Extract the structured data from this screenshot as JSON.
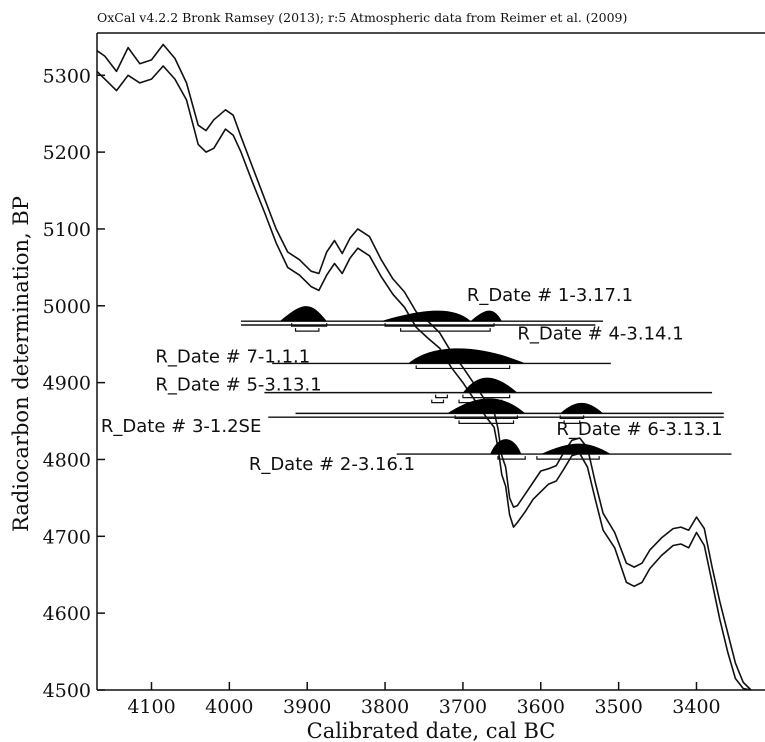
{
  "header": "OxCal v4.2.2 Bronk Ramsey (2013); r:5 Atmospheric data from Reimer et al. (2009)",
  "chart_data": {
    "type": "line",
    "xlabel": "Calibrated date, cal BC",
    "ylabel": "Radiocarbon determination, BP",
    "x_reversed": true,
    "xlim": [
      4170,
      3312
    ],
    "ylim": [
      4500,
      5355
    ],
    "x_ticks": [
      4100,
      4000,
      3900,
      3800,
      3700,
      3600,
      3500,
      3400
    ],
    "y_ticks": [
      4500,
      4600,
      4700,
      4800,
      4900,
      5000,
      5100,
      5200,
      5300
    ],
    "colors": {
      "curve": "#111111",
      "fill": "#000000",
      "axis": "#111111"
    },
    "calibration_curve": {
      "x": [
        4170,
        4160,
        4145,
        4130,
        4115,
        4100,
        4085,
        4070,
        4055,
        4040,
        4030,
        4020,
        4005,
        3995,
        3985,
        3970,
        3955,
        3940,
        3925,
        3910,
        3895,
        3885,
        3875,
        3865,
        3855,
        3845,
        3835,
        3820,
        3805,
        3790,
        3775,
        3760,
        3745,
        3730,
        3715,
        3700,
        3690,
        3680,
        3670,
        3660,
        3655,
        3650,
        3645,
        3640,
        3635,
        3630,
        3620,
        3610,
        3600,
        3590,
        3580,
        3570,
        3560,
        3550,
        3540,
        3530,
        3520,
        3505,
        3490,
        3480,
        3470,
        3460,
        3445,
        3430,
        3420,
        3410,
        3400,
        3390,
        3380,
        3370,
        3360,
        3350,
        3340,
        3330
      ],
      "upper": [
        5332,
        5325,
        5305,
        5336,
        5315,
        5320,
        5340,
        5322,
        5290,
        5235,
        5228,
        5242,
        5255,
        5248,
        5220,
        5180,
        5140,
        5100,
        5070,
        5060,
        5045,
        5042,
        5070,
        5085,
        5068,
        5088,
        5100,
        5090,
        5060,
        5035,
        5018,
        4992,
        4980,
        4965,
        4940,
        4920,
        4905,
        4890,
        4875,
        4862,
        4840,
        4805,
        4790,
        4750,
        4738,
        4740,
        4755,
        4770,
        4785,
        4788,
        4792,
        4810,
        4825,
        4828,
        4815,
        4770,
        4730,
        4705,
        4665,
        4660,
        4665,
        4682,
        4698,
        4710,
        4712,
        4708,
        4725,
        4710,
        4660,
        4615,
        4575,
        4535,
        4510,
        4500
      ],
      "lower": [
        5305,
        5295,
        5280,
        5300,
        5290,
        5295,
        5312,
        5295,
        5268,
        5210,
        5200,
        5205,
        5230,
        5222,
        5200,
        5160,
        5122,
        5082,
        5050,
        5040,
        5025,
        5020,
        5040,
        5055,
        5042,
        5062,
        5075,
        5065,
        5038,
        5015,
        4998,
        4972,
        4958,
        4945,
        4920,
        4900,
        4885,
        4870,
        4855,
        4842,
        4815,
        4780,
        4765,
        4728,
        4712,
        4718,
        4732,
        4748,
        4758,
        4768,
        4772,
        4788,
        4805,
        4808,
        4790,
        4748,
        4708,
        4685,
        4640,
        4635,
        4640,
        4658,
        4675,
        4688,
        4690,
        4685,
        4705,
        4688,
        4640,
        4592,
        4550,
        4515,
        4502,
        4500
      ]
    },
    "series": [
      {
        "name": "R_Date # 1-3.17.1",
        "y": 4980,
        "x_from": 3985,
        "x_to": 3520,
        "mode_x": [
          3930,
          3905,
          3895,
          3880,
          3800,
          3745,
          3690,
          3675
        ],
        "peaks": [
          [
            3935,
            3905,
            3895,
            3875
          ],
          [
            3805,
            3745,
            3710,
            3690
          ],
          [
            3690,
            3670,
            3660,
            3650
          ]
        ],
        "brackets": [
          [
            [
              3920,
              3875
            ],
            [
              3800,
              3660
            ]
          ],
          [
            [
              3915,
              3885
            ],
            [
              3780,
              3665
            ]
          ]
        ]
      },
      {
        "name": "R_Date # 4-3.14.1",
        "y": 4975,
        "x_from": 3985,
        "x_to": 3530
      },
      {
        "name": "R_Date # 7-1.1.1",
        "y": 4925,
        "x_from": 3945,
        "x_to": 3510,
        "peaks": [
          [
            3770,
            3740,
            3680,
            3620
          ]
        ],
        "brackets": [
          [
            [
              3760,
              3640
            ]
          ]
        ]
      },
      {
        "name": "R_Date # 5-3.13.1",
        "y": 4887,
        "x_from": 3955,
        "x_to": 3380,
        "peaks": [
          [
            3700,
            3680,
            3660,
            3630
          ]
        ],
        "brackets": [
          [
            [
              3735,
              3720
            ],
            [
              3700,
              3640
            ]
          ],
          [
            [
              3740,
              3725
            ],
            [
              3705,
              3650
            ]
          ]
        ]
      },
      {
        "name": "R_Date # 3-1.2SE",
        "y": 4860,
        "x_from": 3915,
        "x_to": 3365,
        "peaks": [
          [
            3720,
            3680,
            3650,
            3620
          ],
          [
            3575,
            3555,
            3540,
            3520
          ]
        ],
        "brackets": [
          [
            [
              3710,
              3630
            ],
            [
              3575,
              3545
            ]
          ],
          [
            [
              3705,
              3635
            ],
            [
              3570,
              3550
            ]
          ]
        ]
      },
      {
        "name": "R_Date # 6-3.13.1",
        "y": 4855,
        "x_from": 3950,
        "x_to": 3365
      },
      {
        "name": "R_Date # 2-3.16.1",
        "y": 4807,
        "x_from": 3785,
        "x_to": 3355,
        "peaks": [
          [
            3665,
            3655,
            3635,
            3625
          ],
          [
            3600,
            3560,
            3540,
            3510
          ]
        ],
        "brackets": [
          [
            [
              3655,
              3620
            ],
            [
              3605,
              3525
            ]
          ]
        ]
      }
    ],
    "labels": [
      {
        "text": "R_Date # 1-3.17.1",
        "x": 3695,
        "y": 5006
      },
      {
        "text": "R_Date # 4-3.14.1",
        "x": 3630,
        "y": 4956
      },
      {
        "text": "R_Date # 7-1.1.1",
        "x": 4095,
        "y": 4926
      },
      {
        "text": "R_Date # 5-3.13.1",
        "x": 4095,
        "y": 4890
      },
      {
        "text": "R_Date # 3-1.2SE",
        "x": 4165,
        "y": 4836
      },
      {
        "text": "R_Date # 6-3.13.1",
        "x": 3580,
        "y": 4832
      },
      {
        "text": "R_Date # 2-3.16.1",
        "x": 3975,
        "y": 4786
      }
    ]
  }
}
